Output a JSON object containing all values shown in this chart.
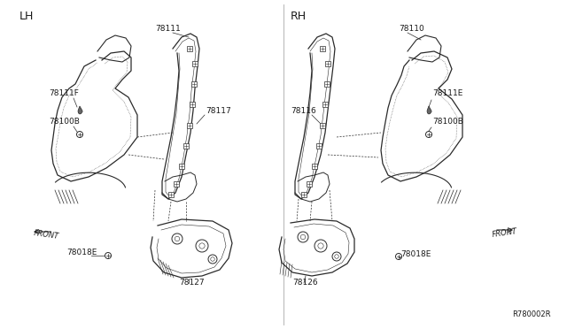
{
  "background_color": "#ffffff",
  "diagram_id": "R780002R",
  "lh_label": "LH",
  "rh_label": "RH",
  "lh_parts": {
    "main_label": "78111",
    "inner_label": "78117",
    "bolt1_label": "78111F",
    "bolt2_label": "78100B",
    "lower_label": "78127",
    "bolt3_label": "78018E",
    "front_arrow": "FRONT"
  },
  "rh_parts": {
    "main_label": "78110",
    "inner_label": "78116",
    "bolt1_label": "78111E",
    "bolt2_label": "78100B",
    "lower_label": "78126",
    "bolt3_label": "78018E",
    "front_arrow": "FRONT"
  },
  "line_color": "#2a2a2a",
  "text_color": "#1a1a1a",
  "font_size": 6.5,
  "fig_width": 6.4,
  "fig_height": 3.72
}
